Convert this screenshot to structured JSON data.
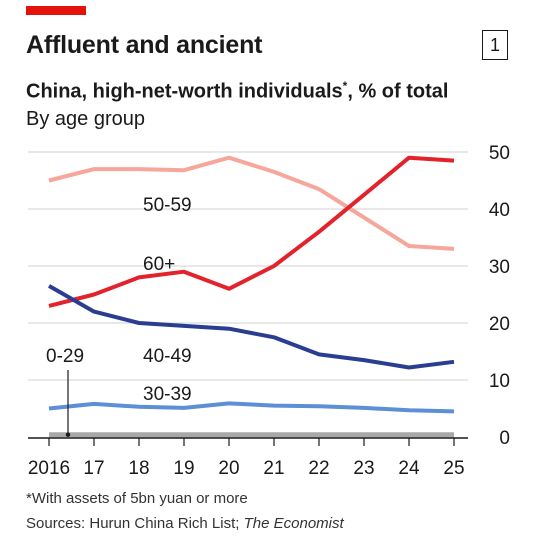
{
  "header": {
    "title": "Affluent and ancient",
    "badge": "1",
    "subtitle_main": "China, high-net-worth individuals",
    "subtitle_mark": "*",
    "subtitle_tail": ", % of total",
    "subtitle2": "By age group"
  },
  "footer": {
    "footnote": "*With assets of 5bn yuan or more",
    "source_prefix": "Sources: Hurun China Rich List; ",
    "source_italic": "The Economist"
  },
  "colors": {
    "accent": "#e3120b",
    "s60": "#e3232c",
    "s50": "#f6a69b",
    "s40": "#2a3d91",
    "s30": "#5c8fd6",
    "s0": "#a8a8a8",
    "grid": "#d9d9d9",
    "axis": "#1a1a1a"
  },
  "chart_data": {
    "type": "line",
    "x": [
      2016,
      2017,
      2018,
      2019,
      2020,
      2021,
      2022,
      2023,
      2024,
      2025
    ],
    "x_tick_labels": [
      "2016",
      "17",
      "18",
      "19",
      "20",
      "21",
      "22",
      "23",
      "24",
      "25"
    ],
    "ylim": [
      0,
      50
    ],
    "y_ticks": [
      0,
      10,
      20,
      30,
      40,
      50
    ],
    "y_tick_labels": [
      "0",
      "10",
      "20",
      "30",
      "40",
      "50"
    ],
    "y_axis_position": "right",
    "grid": true,
    "series": [
      {
        "name": "50-59",
        "color_key": "s50",
        "values": [
          45,
          47,
          47,
          46.8,
          49,
          46.5,
          43.5,
          38.5,
          33.5,
          33
        ]
      },
      {
        "name": "60+",
        "color_key": "s60",
        "values": [
          23,
          25,
          28,
          29,
          26,
          30,
          36,
          42.5,
          49,
          48.5
        ]
      },
      {
        "name": "40-49",
        "color_key": "s40",
        "values": [
          26.5,
          22,
          20,
          19.5,
          19,
          17.5,
          14.5,
          13.5,
          12.2,
          13.2
        ]
      },
      {
        "name": "30-39",
        "color_key": "s30",
        "values": [
          5,
          5.8,
          5.3,
          5.1,
          5.9,
          5.5,
          5.4,
          5.1,
          4.7,
          4.5
        ]
      },
      {
        "name": "0-29",
        "color_key": "s0",
        "values": [
          0.4,
          0.4,
          0.4,
          0.4,
          0.4,
          0.4,
          0.4,
          0.4,
          0.4,
          0.4
        ]
      }
    ]
  }
}
